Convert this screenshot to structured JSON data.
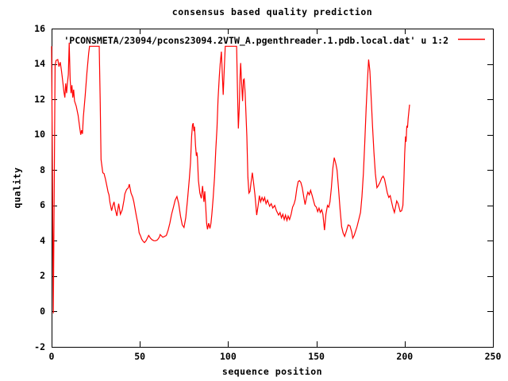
{
  "window": {
    "background": "#ffffff",
    "foreground": "#000000"
  },
  "chart_data": {
    "type": "line",
    "title": "consensus based quality prediction",
    "xlabel": "sequence position",
    "ylabel": "quality",
    "xlim": [
      0,
      250
    ],
    "ylim": [
      -2,
      16
    ],
    "x_ticks": [
      0,
      50,
      100,
      150,
      200,
      250
    ],
    "y_ticks": [
      16,
      14,
      12,
      10,
      8,
      6,
      4,
      2,
      0,
      -2
    ],
    "grid": false,
    "legend_position": "top-right-inside",
    "legend_label": "'PCONSMETA/23094/pcons23094.2VTW_A.pgenthreader.1.pdb.local.dat' u 1:2",
    "series": [
      {
        "name": "'PCONSMETA/23094/pcons23094.2VTW_A.pgenthreader.1.pdb.local.dat' u 1:2",
        "color": "#ff0000",
        "points": [
          [
            0,
            15
          ],
          [
            1,
            -0.1
          ],
          [
            2,
            13.9
          ],
          [
            2.5,
            14.2
          ],
          [
            3.5,
            14.25
          ],
          [
            4.2,
            13.85
          ],
          [
            4.9,
            14.1
          ],
          [
            5.5,
            13.7
          ],
          [
            6,
            13.3
          ],
          [
            7,
            12.4
          ],
          [
            7.5,
            12.1
          ],
          [
            8,
            12.9
          ],
          [
            8.5,
            12.35
          ],
          [
            9,
            12.95
          ],
          [
            9.5,
            13.4
          ],
          [
            10,
            15.2
          ],
          [
            10.5,
            13.1
          ],
          [
            11,
            12.35
          ],
          [
            11.5,
            12.8
          ],
          [
            12,
            12.1
          ],
          [
            12.5,
            12.55
          ],
          [
            13,
            11.9
          ],
          [
            14,
            11.6
          ],
          [
            15,
            11.1
          ],
          [
            16,
            10.35
          ],
          [
            16.5,
            10
          ],
          [
            17,
            10.25
          ],
          [
            17.5,
            10.05
          ],
          [
            18,
            11
          ],
          [
            19,
            12.2
          ],
          [
            20,
            13.5
          ],
          [
            21,
            14.6
          ],
          [
            21.5,
            15
          ],
          [
            27,
            15
          ],
          [
            27.5,
            12
          ],
          [
            28,
            8.6
          ],
          [
            29,
            7.85
          ],
          [
            29.7,
            7.8
          ],
          [
            30.5,
            7.5
          ],
          [
            31.5,
            7
          ],
          [
            32,
            6.75
          ],
          [
            32.5,
            6.6
          ],
          [
            33,
            6.2
          ],
          [
            34,
            5.7
          ],
          [
            34.7,
            6
          ],
          [
            35.4,
            6.2
          ],
          [
            36,
            5.8
          ],
          [
            37,
            5.4
          ],
          [
            38,
            6.1
          ],
          [
            39,
            5.5
          ],
          [
            40,
            5.75
          ],
          [
            41,
            6.3
          ],
          [
            41.5,
            6.65
          ],
          [
            42.5,
            6.9
          ],
          [
            43.5,
            7
          ],
          [
            44,
            7.2
          ],
          [
            45,
            6.7
          ],
          [
            46,
            6.45
          ],
          [
            46.6,
            6.2
          ],
          [
            47.5,
            5.7
          ],
          [
            48,
            5.4
          ],
          [
            49,
            4.9
          ],
          [
            49.6,
            4.45
          ],
          [
            50.5,
            4.25
          ],
          [
            51,
            4.1
          ],
          [
            52,
            3.95
          ],
          [
            52.6,
            3.9
          ],
          [
            53.5,
            4
          ],
          [
            54,
            4.1
          ],
          [
            55,
            4.3
          ],
          [
            56,
            4.15
          ],
          [
            57,
            4.05
          ],
          [
            58,
            4
          ],
          [
            59,
            4
          ],
          [
            60,
            4.05
          ],
          [
            61,
            4.2
          ],
          [
            61.5,
            4.35
          ],
          [
            62.5,
            4.25
          ],
          [
            63,
            4.2
          ],
          [
            64,
            4.25
          ],
          [
            65,
            4.3
          ],
          [
            66,
            4.6
          ],
          [
            67,
            5
          ],
          [
            68,
            5.5
          ],
          [
            69,
            5.9
          ],
          [
            70,
            6.3
          ],
          [
            71,
            6.5
          ],
          [
            72,
            6.1
          ],
          [
            73,
            5.4
          ],
          [
            74,
            4.9
          ],
          [
            75,
            4.75
          ],
          [
            76,
            5.3
          ],
          [
            77,
            6.3
          ],
          [
            78,
            7.5
          ],
          [
            78.7,
            8.4
          ],
          [
            79.3,
            9.9
          ],
          [
            79.8,
            10.55
          ],
          [
            80.2,
            10.65
          ],
          [
            80.6,
            10.2
          ],
          [
            81,
            10.45
          ],
          [
            81.5,
            9.4
          ],
          [
            82,
            8.8
          ],
          [
            82.3,
            9
          ],
          [
            82.6,
            8.75
          ],
          [
            83.2,
            7.4
          ],
          [
            84,
            6.7
          ],
          [
            84.8,
            6.4
          ],
          [
            85.5,
            7.1
          ],
          [
            86.3,
            6.2
          ],
          [
            86.8,
            6.8
          ],
          [
            87.3,
            5.9
          ],
          [
            87.8,
            5
          ],
          [
            88.3,
            4.65
          ],
          [
            89,
            5
          ],
          [
            89.7,
            4.7
          ],
          [
            90.3,
            5
          ],
          [
            90.8,
            5.5
          ],
          [
            91.5,
            6.4
          ],
          [
            92.3,
            7.6
          ],
          [
            93,
            9.1
          ],
          [
            93.7,
            10.4
          ],
          [
            94.3,
            12
          ],
          [
            95,
            13.3
          ],
          [
            95.5,
            14
          ],
          [
            96.2,
            14.7
          ],
          [
            97.2,
            12.25
          ],
          [
            98,
            14.2
          ],
          [
            98.4,
            15
          ],
          [
            104.8,
            15
          ],
          [
            105.3,
            12.5
          ],
          [
            105.8,
            10.35
          ],
          [
            106.3,
            11.5
          ],
          [
            106.8,
            13.4
          ],
          [
            107.1,
            14.05
          ],
          [
            107.6,
            13
          ],
          [
            108.2,
            11.9
          ],
          [
            108.7,
            13.1
          ],
          [
            109.1,
            13.15
          ],
          [
            109.6,
            12.4
          ],
          [
            110,
            11.5
          ],
          [
            110.6,
            9.9
          ],
          [
            111.2,
            7.6
          ],
          [
            111.8,
            6.7
          ],
          [
            112.4,
            6.8
          ],
          [
            113,
            7.3
          ],
          [
            113.7,
            7.85
          ],
          [
            114.4,
            7.3
          ],
          [
            115.2,
            6.6
          ],
          [
            116.2,
            5.45
          ],
          [
            117,
            6
          ],
          [
            117.7,
            6.55
          ],
          [
            118.4,
            6.2
          ],
          [
            119.2,
            6.45
          ],
          [
            120,
            6.25
          ],
          [
            120.7,
            6.45
          ],
          [
            121.5,
            6.1
          ],
          [
            122.3,
            6.3
          ],
          [
            123.5,
            5.95
          ],
          [
            124.4,
            6.1
          ],
          [
            125.3,
            5.85
          ],
          [
            126.4,
            6
          ],
          [
            127.4,
            5.7
          ],
          [
            128.6,
            5.45
          ],
          [
            129.4,
            5.6
          ],
          [
            130.2,
            5.3
          ],
          [
            131,
            5.5
          ],
          [
            131.8,
            5.2
          ],
          [
            132.5,
            5.45
          ],
          [
            133.3,
            5.15
          ],
          [
            134,
            5.4
          ],
          [
            134.8,
            5.2
          ],
          [
            135.7,
            5.5
          ],
          [
            136.5,
            5.9
          ],
          [
            137.4,
            6.1
          ],
          [
            138.1,
            6.35
          ],
          [
            139,
            7
          ],
          [
            139.7,
            7.35
          ],
          [
            140.4,
            7.4
          ],
          [
            141.2,
            7.3
          ],
          [
            142,
            7
          ],
          [
            143,
            6.4
          ],
          [
            143.6,
            6.05
          ],
          [
            144.5,
            6.5
          ],
          [
            145.2,
            6.75
          ],
          [
            146,
            6.6
          ],
          [
            146.7,
            6.85
          ],
          [
            147.5,
            6.6
          ],
          [
            148.3,
            6.3
          ],
          [
            149.1,
            6
          ],
          [
            150,
            5.9
          ],
          [
            150.7,
            5.65
          ],
          [
            151.5,
            5.85
          ],
          [
            152.2,
            5.6
          ],
          [
            153,
            5.75
          ],
          [
            153.7,
            5.5
          ],
          [
            154.6,
            4.6
          ],
          [
            155.4,
            5.5
          ],
          [
            156.3,
            6
          ],
          [
            157,
            5.9
          ],
          [
            157.7,
            6.2
          ],
          [
            158.5,
            7
          ],
          [
            159.3,
            8.1
          ],
          [
            160.1,
            8.7
          ],
          [
            161,
            8.35
          ],
          [
            161.7,
            8
          ],
          [
            162.5,
            7
          ],
          [
            163.4,
            5.8
          ],
          [
            164.3,
            4.8
          ],
          [
            165.1,
            4.45
          ],
          [
            166,
            4.25
          ],
          [
            167,
            4.55
          ],
          [
            168,
            4.9
          ],
          [
            169,
            4.85
          ],
          [
            170,
            4.5
          ],
          [
            170.6,
            4.15
          ],
          [
            171.4,
            4.3
          ],
          [
            172.2,
            4.55
          ],
          [
            173,
            4.8
          ],
          [
            174,
            5.2
          ],
          [
            175,
            5.6
          ],
          [
            175.8,
            6.5
          ],
          [
            176.6,
            7.8
          ],
          [
            177.4,
            9.5
          ],
          [
            178.2,
            11.5
          ],
          [
            179,
            13.2
          ],
          [
            179.6,
            14.25
          ],
          [
            180.3,
            13.6
          ],
          [
            181,
            12.2
          ],
          [
            181.8,
            10.5
          ],
          [
            182.6,
            9
          ],
          [
            183.4,
            7.8
          ],
          [
            184.3,
            7
          ],
          [
            185,
            7.1
          ],
          [
            186,
            7.3
          ],
          [
            187,
            7.55
          ],
          [
            187.8,
            7.65
          ],
          [
            188.6,
            7.5
          ],
          [
            189.4,
            7.1
          ],
          [
            190.2,
            6.7
          ],
          [
            191,
            6.45
          ],
          [
            191.8,
            6.55
          ],
          [
            192.6,
            6.2
          ],
          [
            193.4,
            5.85
          ],
          [
            194.2,
            5.6
          ],
          [
            195.5,
            6.25
          ],
          [
            196.3,
            6.1
          ],
          [
            197.5,
            5.65
          ],
          [
            198.3,
            5.7
          ],
          [
            199,
            6
          ],
          [
            199.6,
            7.5
          ],
          [
            200,
            8.9
          ],
          [
            200.5,
            9.9
          ],
          [
            200.8,
            9.6
          ],
          [
            201.2,
            10.5
          ],
          [
            201.6,
            10.4
          ],
          [
            202,
            10.9
          ],
          [
            202.4,
            11.3
          ],
          [
            202.8,
            11.7
          ]
        ]
      }
    ]
  }
}
